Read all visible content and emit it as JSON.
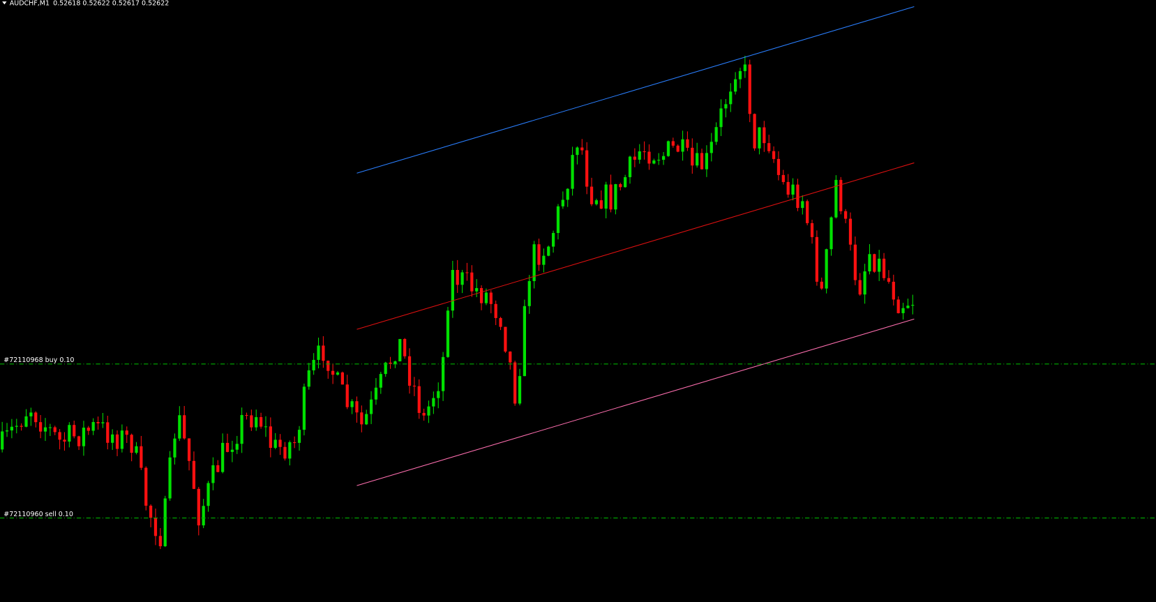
{
  "header": {
    "symbol": "AUDCHF,M1",
    "prices": "0.52618 0.52622 0.52617 0.52622"
  },
  "orders": [
    {
      "label": "#72110968 buy 0.10"
    },
    {
      "label": "#72110960 sell 0.10"
    }
  ]
}
